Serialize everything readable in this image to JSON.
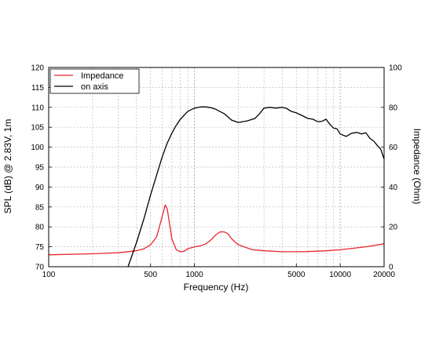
{
  "chart_data": {
    "type": "line",
    "x_scale": "log",
    "xlabel": "Frequency (Hz)",
    "ylabel_left": "SPL (dB) @ 2.83V, 1m",
    "ylabel_right": "Impedance (Ohm)",
    "xlim": [
      100,
      20000
    ],
    "ylim_left": [
      70,
      120
    ],
    "ylim_right": [
      0,
      100
    ],
    "x_ticks": [
      {
        "value": 100,
        "label": "100"
      },
      {
        "value": 500,
        "label": "500"
      },
      {
        "value": 1000,
        "label": "1000"
      },
      {
        "value": 5000,
        "label": "5000"
      },
      {
        "value": 10000,
        "label": "10000"
      },
      {
        "value": 20000,
        "label": "20000"
      }
    ],
    "y_ticks_left": [
      "70",
      "75",
      "80",
      "85",
      "90",
      "95",
      "100",
      "105",
      "110",
      "115",
      "120"
    ],
    "y_ticks_right": [
      "0",
      "20",
      "40",
      "60",
      "80",
      "100"
    ],
    "grid": true,
    "legend_position": "top-left",
    "series": [
      {
        "name": "Impedance",
        "color": "#e8262a",
        "axis": "right",
        "x": [
          100,
          200,
          300,
          400,
          450,
          500,
          550,
          600,
          630,
          650,
          680,
          700,
          750,
          800,
          850,
          900,
          1000,
          1100,
          1200,
          1300,
          1400,
          1500,
          1600,
          1700,
          1800,
          2000,
          2500,
          3000,
          4000,
          5000,
          6000,
          8000,
          10000,
          15000,
          20000
        ],
        "y": [
          6.0,
          6.5,
          7.0,
          8.0,
          9.0,
          11.0,
          15.0,
          25.0,
          31.0,
          29.0,
          20.0,
          14.0,
          8.5,
          7.5,
          7.8,
          9.0,
          10.0,
          10.5,
          11.5,
          13.5,
          16.0,
          17.5,
          17.5,
          16.5,
          14.0,
          11.0,
          8.5,
          8.0,
          7.5,
          7.5,
          7.6,
          8.0,
          8.5,
          10.0,
          11.5
        ]
      },
      {
        "name": "on axis",
        "color": "#000000",
        "axis": "left",
        "x": [
          350,
          400,
          450,
          500,
          550,
          600,
          650,
          700,
          750,
          800,
          900,
          1000,
          1100,
          1200,
          1300,
          1400,
          1600,
          1800,
          2000,
          2300,
          2600,
          2800,
          3000,
          3300,
          3600,
          4000,
          4300,
          4600,
          5000,
          5500,
          6000,
          6500,
          7000,
          7500,
          8000,
          8500,
          9000,
          9500,
          10000,
          11000,
          12000,
          13000,
          14000,
          15000,
          16000,
          17000,
          18000,
          19000,
          20000
        ],
        "y": [
          70,
          76,
          82,
          88,
          93,
          97.5,
          101,
          103.5,
          105.5,
          107,
          109,
          109.8,
          110.1,
          110.1,
          109.9,
          109.5,
          108.4,
          106.8,
          106.2,
          106.6,
          107.2,
          108.4,
          109.8,
          110.0,
          109.8,
          110.0,
          109.7,
          109.0,
          108.6,
          107.9,
          107.2,
          107.0,
          106.4,
          106.5,
          107.0,
          105.7,
          104.8,
          104.6,
          103.3,
          102.7,
          103.5,
          103.7,
          103.3,
          103.6,
          102.2,
          101.5,
          100.4,
          99.4,
          97.0
        ]
      }
    ]
  }
}
